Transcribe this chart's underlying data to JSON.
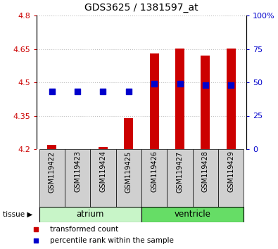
{
  "title": "GDS3625 / 1381597_at",
  "samples": [
    "GSM119422",
    "GSM119423",
    "GSM119424",
    "GSM119425",
    "GSM119426",
    "GSM119427",
    "GSM119428",
    "GSM119429"
  ],
  "transformed_count": [
    4.22,
    4.2,
    4.21,
    4.34,
    4.63,
    4.65,
    4.62,
    4.65
  ],
  "percentile_rank": [
    43,
    43,
    43,
    43,
    49,
    49,
    48,
    48
  ],
  "base_value": 4.2,
  "tissue_groups": [
    {
      "name": "atrium",
      "indices": [
        0,
        1,
        2,
        3
      ],
      "color": "#c8f5c8"
    },
    {
      "name": "ventricle",
      "indices": [
        4,
        5,
        6,
        7
      ],
      "color": "#66dd66"
    }
  ],
  "ylim_left": [
    4.2,
    4.8
  ],
  "ylim_right": [
    0,
    100
  ],
  "yticks_left": [
    4.2,
    4.35,
    4.5,
    4.65,
    4.8
  ],
  "yticks_right": [
    0,
    25,
    50,
    75,
    100
  ],
  "ytick_labels_left": [
    "4.2",
    "4.35",
    "4.5",
    "4.65",
    "4.8"
  ],
  "ytick_labels_right": [
    "0",
    "25",
    "50",
    "75",
    "100%"
  ],
  "bar_color": "#cc0000",
  "dot_color": "#0000cc",
  "bar_width": 0.35,
  "dot_size": 35,
  "grid_color": "#000000",
  "grid_alpha": 0.25,
  "bg_color": "#ffffff",
  "label_color_left": "#cc0000",
  "label_color_right": "#0000cc",
  "legend_items": [
    {
      "label": "transformed count",
      "color": "#cc0000"
    },
    {
      "label": "percentile rank within the sample",
      "color": "#0000cc"
    }
  ]
}
